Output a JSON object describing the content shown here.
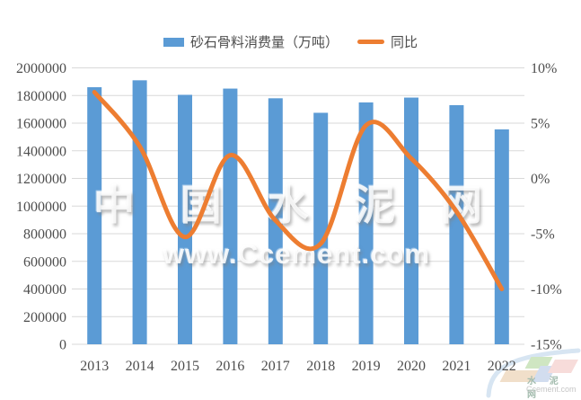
{
  "legend": {
    "bar_label": "砂石骨料消费量（万吨）",
    "line_label": "同比"
  },
  "watermark": {
    "line1": "中 国 水 泥 网",
    "line2": "www.Ccement.com"
  },
  "logo": {
    "text_cn": "水 泥 网",
    "text_en": "Ccement.com"
  },
  "colors": {
    "bar": "#5B9BD5",
    "line": "#ED7D31",
    "grid": "#D9D9D9",
    "axis_text": "#4d4d4d"
  },
  "chart_data": {
    "type": "bar",
    "subtype": "bar-with-line-overlay",
    "title": "",
    "categories": [
      "2013",
      "2014",
      "2015",
      "2016",
      "2017",
      "2018",
      "2019",
      "2020",
      "2021",
      "2022"
    ],
    "series": [
      {
        "name": "砂石骨料消费量（万吨）",
        "type": "bar",
        "axis": "left",
        "color": "#5B9BD5",
        "values": [
          1860000,
          1910000,
          1805000,
          1850000,
          1780000,
          1675000,
          1750000,
          1785000,
          1730000,
          1555000
        ]
      },
      {
        "name": "同比",
        "type": "line",
        "axis": "right",
        "color": "#ED7D31",
        "values": [
          7.8,
          2.9,
          -5.3,
          2.1,
          -3.8,
          -5.9,
          4.8,
          1.8,
          -3.0,
          -10.0
        ]
      }
    ],
    "left_axis": {
      "min": 0,
      "max": 2000000,
      "ticks": [
        0,
        200000,
        400000,
        600000,
        800000,
        1000000,
        1200000,
        1400000,
        1600000,
        1800000,
        2000000
      ],
      "tick_labels": [
        "0",
        "200000",
        "400000",
        "600000",
        "800000",
        "1000000",
        "1200000",
        "1400000",
        "1600000",
        "1800000",
        "2000000"
      ]
    },
    "right_axis": {
      "min": -15,
      "max": 10,
      "ticks": [
        -15,
        -10,
        -5,
        0,
        5,
        10
      ],
      "tick_labels": [
        "-15%",
        "-10%",
        "-5%",
        "0%",
        "5%",
        "10%"
      ]
    },
    "grid": true,
    "legend_position": "top"
  }
}
